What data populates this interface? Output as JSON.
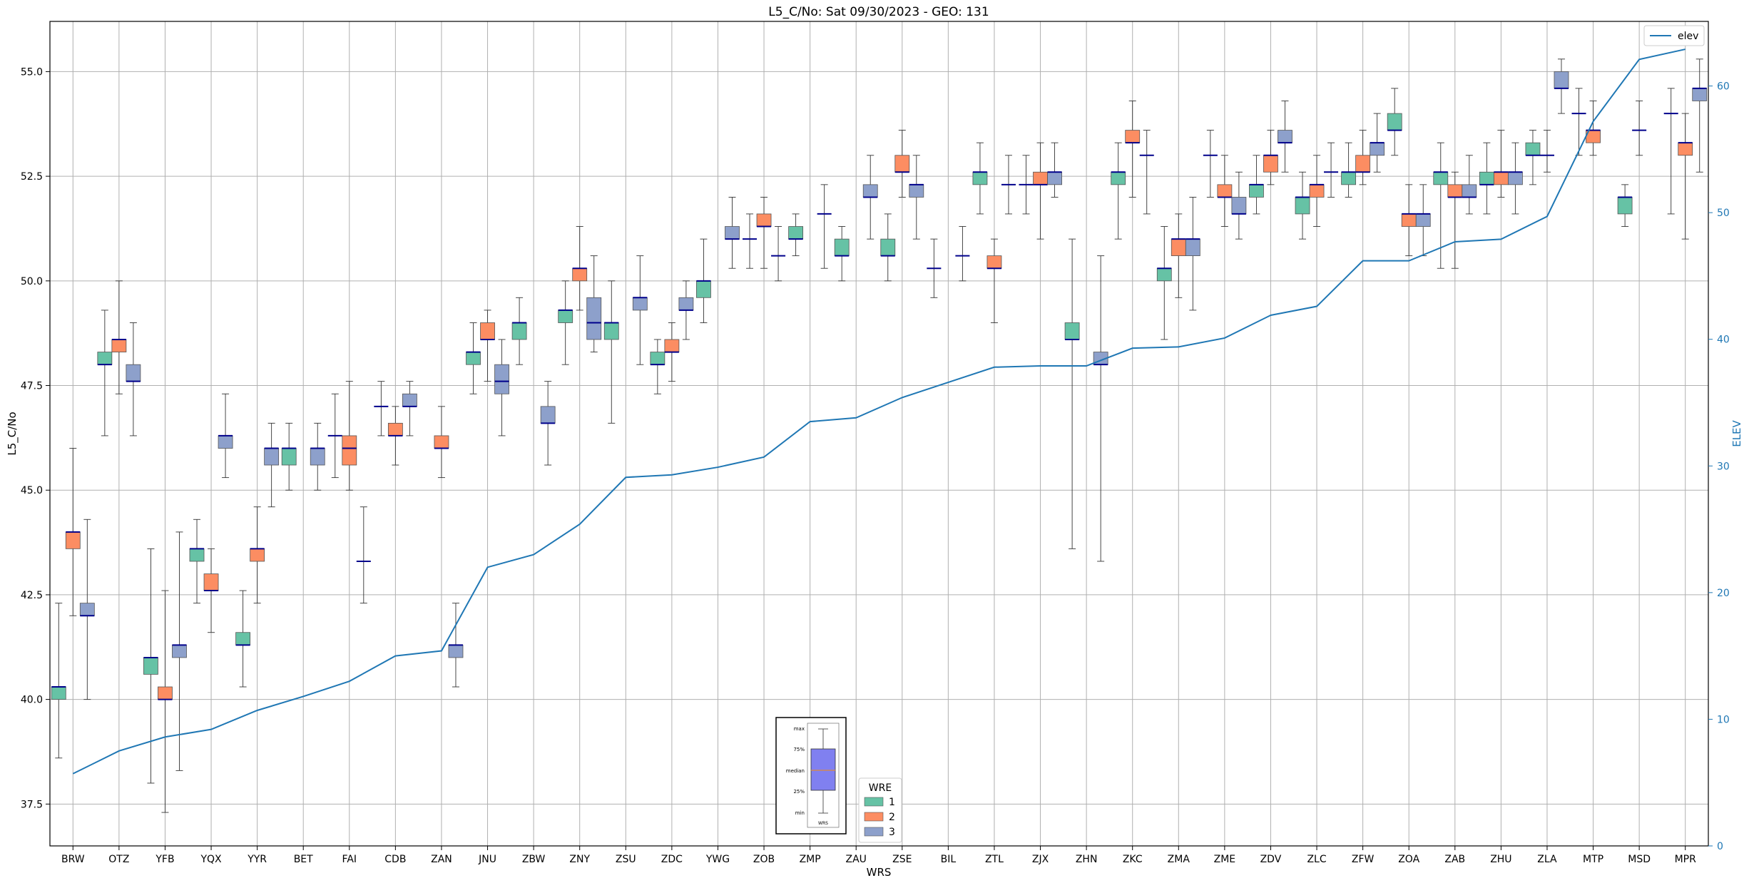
{
  "chart_data": {
    "type": "box",
    "title": "L5_C/No: Sat 09/30/2023 - GEO: 131",
    "xlabel": "WRS",
    "ylabel": "L5_C/No",
    "y2label": "ELEV",
    "ylim": [
      36.5,
      56.2
    ],
    "y2lim": [
      0,
      65.1
    ],
    "yticks": [
      "37.5",
      "40.0",
      "42.5",
      "45.0",
      "47.5",
      "50.0",
      "52.5",
      "55.0"
    ],
    "y2ticks": [
      "0",
      "10",
      "20",
      "30",
      "40",
      "50",
      "60"
    ],
    "grid": true,
    "categories": [
      "BRW",
      "OTZ",
      "YFB",
      "YQX",
      "YYR",
      "BET",
      "FAI",
      "CDB",
      "ZAN",
      "JNU",
      "ZBW",
      "ZNY",
      "ZSU",
      "ZDC",
      "YWG",
      "ZOB",
      "ZMP",
      "ZAU",
      "ZSE",
      "BIL",
      "ZTL",
      "ZJX",
      "ZHN",
      "ZKC",
      "ZMA",
      "ZME",
      "ZDV",
      "ZLC",
      "ZFW",
      "ZOA",
      "ZAB",
      "ZHU",
      "ZLA",
      "MTP",
      "MSD",
      "MPR"
    ],
    "wre_colors": {
      "1": "#66c2a5",
      "2": "#fc8d62",
      "3": "#8da0cb"
    },
    "legend_wre": {
      "title": "WRE",
      "entries": [
        "1",
        "2",
        "3"
      ],
      "position": "bottom-center"
    },
    "legend_elev": {
      "label": "elev",
      "color": "#1f77b4",
      "position": "top-right"
    },
    "box_key": {
      "labels": [
        "max",
        "75%",
        "median",
        "25%",
        "min"
      ],
      "xlabel": "WRS"
    },
    "series": [
      {
        "name": "1",
        "values": [
          {
            "cat": "BRW",
            "min": 38.6,
            "q1": 40.0,
            "median": 40.3,
            "q3": 40.3,
            "max": 42.3
          },
          {
            "cat": "OTZ",
            "min": 46.3,
            "q1": 48.0,
            "median": 48.0,
            "q3": 48.3,
            "max": 49.3
          },
          {
            "cat": "YFB",
            "min": 38.0,
            "q1": 40.6,
            "median": 41.0,
            "q3": 41.0,
            "max": 43.6
          },
          {
            "cat": "YQX",
            "min": 42.3,
            "q1": 43.3,
            "median": 43.6,
            "q3": 43.6,
            "max": 44.3
          },
          {
            "cat": "YYR",
            "min": 40.3,
            "q1": 41.3,
            "median": 41.3,
            "q3": 41.6,
            "max": 42.6
          },
          {
            "cat": "BET",
            "min": 45.0,
            "q1": 45.6,
            "median": 46.0,
            "q3": 46.0,
            "max": 46.6
          },
          {
            "cat": "FAI",
            "min": 45.3,
            "q1": 46.3,
            "median": 46.3,
            "q3": 46.3,
            "max": 47.3
          },
          {
            "cat": "CDB",
            "min": 46.3,
            "q1": 47.0,
            "median": 47.0,
            "q3": 47.0,
            "max": 47.6
          },
          {
            "cat": "JNU",
            "min": 47.3,
            "q1": 48.0,
            "median": 48.3,
            "q3": 48.3,
            "max": 49.0
          },
          {
            "cat": "ZBW",
            "min": 48.0,
            "q1": 48.6,
            "median": 49.0,
            "q3": 49.0,
            "max": 49.6
          },
          {
            "cat": "ZNY",
            "min": 48.0,
            "q1": 49.0,
            "median": 49.3,
            "q3": 49.3,
            "max": 50.0
          },
          {
            "cat": "ZSU",
            "min": 46.6,
            "q1": 48.6,
            "median": 49.0,
            "q3": 49.0,
            "max": 50.0
          },
          {
            "cat": "ZDC",
            "min": 47.3,
            "q1": 48.0,
            "median": 48.0,
            "q3": 48.3,
            "max": 48.6
          },
          {
            "cat": "YWG",
            "min": 49.0,
            "q1": 49.6,
            "median": 50.0,
            "q3": 50.0,
            "max": 51.0
          },
          {
            "cat": "ZOB",
            "min": 50.3,
            "q1": 51.0,
            "median": 51.0,
            "q3": 51.0,
            "max": 51.6
          },
          {
            "cat": "ZMP",
            "min": 50.6,
            "q1": 51.0,
            "median": 51.0,
            "q3": 51.3,
            "max": 51.6
          },
          {
            "cat": "ZAU",
            "min": 50.0,
            "q1": 50.6,
            "median": 50.6,
            "q3": 51.0,
            "max": 51.3
          },
          {
            "cat": "ZSE",
            "min": 50.0,
            "q1": 50.6,
            "median": 50.6,
            "q3": 51.0,
            "max": 51.6
          },
          {
            "cat": "BIL",
            "min": 49.6,
            "q1": 50.3,
            "median": 50.3,
            "q3": 50.3,
            "max": 51.0
          },
          {
            "cat": "ZTL",
            "min": 51.6,
            "q1": 52.3,
            "median": 52.6,
            "q3": 52.6,
            "max": 53.3
          },
          {
            "cat": "ZJX",
            "min": 51.6,
            "q1": 52.3,
            "median": 52.3,
            "q3": 52.3,
            "max": 53.0
          },
          {
            "cat": "ZHN",
            "min": 43.6,
            "q1": 48.6,
            "median": 48.6,
            "q3": 49.0,
            "max": 51.0
          },
          {
            "cat": "ZKC",
            "min": 51.0,
            "q1": 52.3,
            "median": 52.6,
            "q3": 52.6,
            "max": 53.3
          },
          {
            "cat": "ZMA",
            "min": 48.6,
            "q1": 50.0,
            "median": 50.3,
            "q3": 50.3,
            "max": 51.3
          },
          {
            "cat": "ZME",
            "min": 52.0,
            "q1": 53.0,
            "median": 53.0,
            "q3": 53.0,
            "max": 53.6
          },
          {
            "cat": "ZDV",
            "min": 51.6,
            "q1": 52.0,
            "median": 52.3,
            "q3": 52.3,
            "max": 53.0
          },
          {
            "cat": "ZLC",
            "min": 51.0,
            "q1": 51.6,
            "median": 52.0,
            "q3": 52.0,
            "max": 52.6
          },
          {
            "cat": "ZFW",
            "min": 52.0,
            "q1": 52.3,
            "median": 52.6,
            "q3": 52.6,
            "max": 53.3
          },
          {
            "cat": "ZOA",
            "min": 53.0,
            "q1": 53.6,
            "median": 53.6,
            "q3": 54.0,
            "max": 54.6
          },
          {
            "cat": "ZAB",
            "min": 50.3,
            "q1": 52.3,
            "median": 52.6,
            "q3": 52.6,
            "max": 53.3
          },
          {
            "cat": "ZHU",
            "min": 51.6,
            "q1": 52.3,
            "median": 52.3,
            "q3": 52.6,
            "max": 53.3
          },
          {
            "cat": "ZLA",
            "min": 52.3,
            "q1": 53.0,
            "median": 53.0,
            "q3": 53.3,
            "max": 53.6
          },
          {
            "cat": "MTP",
            "min": 53.0,
            "q1": 54.0,
            "median": 54.0,
            "q3": 54.0,
            "max": 54.6
          },
          {
            "cat": "MSD",
            "min": 51.3,
            "q1": 51.6,
            "median": 52.0,
            "q3": 52.0,
            "max": 52.3
          },
          {
            "cat": "MPR",
            "min": 51.6,
            "q1": 54.0,
            "median": 54.0,
            "q3": 54.0,
            "max": 54.6
          }
        ]
      },
      {
        "name": "2",
        "values": [
          {
            "cat": "BRW",
            "min": 42.0,
            "q1": 43.6,
            "median": 44.0,
            "q3": 44.0,
            "max": 46.0
          },
          {
            "cat": "OTZ",
            "min": 47.3,
            "q1": 48.3,
            "median": 48.6,
            "q3": 48.6,
            "max": 50.0
          },
          {
            "cat": "YFB",
            "min": 37.3,
            "q1": 40.0,
            "median": 40.0,
            "q3": 40.3,
            "max": 42.6
          },
          {
            "cat": "YQX",
            "min": 41.6,
            "q1": 42.6,
            "median": 42.6,
            "q3": 43.0,
            "max": 43.6
          },
          {
            "cat": "YYR",
            "min": 42.3,
            "q1": 43.3,
            "median": 43.6,
            "q3": 43.6,
            "max": 44.6
          },
          {
            "cat": "FAI",
            "min": 45.0,
            "q1": 45.6,
            "median": 46.0,
            "q3": 46.3,
            "max": 47.6
          },
          {
            "cat": "CDB",
            "min": 45.6,
            "q1": 46.3,
            "median": 46.3,
            "q3": 46.6,
            "max": 47.0
          },
          {
            "cat": "ZAN",
            "min": 45.3,
            "q1": 46.0,
            "median": 46.0,
            "q3": 46.3,
            "max": 47.0
          },
          {
            "cat": "JNU",
            "min": 47.6,
            "q1": 48.6,
            "median": 48.6,
            "q3": 49.0,
            "max": 49.3
          },
          {
            "cat": "ZNY",
            "min": 49.3,
            "q1": 50.0,
            "median": 50.3,
            "q3": 50.3,
            "max": 51.3
          },
          {
            "cat": "ZDC",
            "min": 47.6,
            "q1": 48.3,
            "median": 48.3,
            "q3": 48.6,
            "max": 49.0
          },
          {
            "cat": "ZOB",
            "min": 50.3,
            "q1": 51.3,
            "median": 51.3,
            "q3": 51.6,
            "max": 52.0
          },
          {
            "cat": "ZSE",
            "min": 52.0,
            "q1": 52.6,
            "median": 52.6,
            "q3": 53.0,
            "max": 53.6
          },
          {
            "cat": "ZTL",
            "min": 49.0,
            "q1": 50.3,
            "median": 50.3,
            "q3": 50.6,
            "max": 51.0
          },
          {
            "cat": "ZJX",
            "min": 51.0,
            "q1": 52.3,
            "median": 52.3,
            "q3": 52.6,
            "max": 53.3
          },
          {
            "cat": "ZKC",
            "min": 52.0,
            "q1": 53.3,
            "median": 53.3,
            "q3": 53.6,
            "max": 54.3
          },
          {
            "cat": "ZMA",
            "min": 49.6,
            "q1": 50.6,
            "median": 51.0,
            "q3": 51.0,
            "max": 51.6
          },
          {
            "cat": "ZME",
            "min": 51.3,
            "q1": 52.0,
            "median": 52.0,
            "q3": 52.3,
            "max": 53.0
          },
          {
            "cat": "ZDV",
            "min": 52.3,
            "q1": 52.6,
            "median": 53.0,
            "q3": 53.0,
            "max": 53.6
          },
          {
            "cat": "ZLC",
            "min": 51.3,
            "q1": 52.0,
            "median": 52.3,
            "q3": 52.3,
            "max": 53.0
          },
          {
            "cat": "ZFW",
            "min": 52.3,
            "q1": 52.6,
            "median": 52.6,
            "q3": 53.0,
            "max": 53.6
          },
          {
            "cat": "ZOA",
            "min": 50.6,
            "q1": 51.3,
            "median": 51.6,
            "q3": 51.6,
            "max": 52.3
          },
          {
            "cat": "ZAB",
            "min": 50.3,
            "q1": 52.0,
            "median": 52.0,
            "q3": 52.3,
            "max": 52.6
          },
          {
            "cat": "ZHU",
            "min": 52.0,
            "q1": 52.3,
            "median": 52.6,
            "q3": 52.6,
            "max": 53.6
          },
          {
            "cat": "ZLA",
            "min": 52.6,
            "q1": 53.0,
            "median": 53.0,
            "q3": 53.0,
            "max": 53.6
          },
          {
            "cat": "MTP",
            "min": 53.0,
            "q1": 53.3,
            "median": 53.6,
            "q3": 53.6,
            "max": 54.3
          },
          {
            "cat": "MSD",
            "min": 53.0,
            "q1": 53.6,
            "median": 53.6,
            "q3": 53.6,
            "max": 54.3
          },
          {
            "cat": "MPR",
            "min": 51.0,
            "q1": 53.0,
            "median": 53.3,
            "q3": 53.3,
            "max": 54.0
          }
        ]
      },
      {
        "name": "3",
        "values": [
          {
            "cat": "BRW",
            "min": 40.0,
            "q1": 42.0,
            "median": 42.0,
            "q3": 42.3,
            "max": 44.3
          },
          {
            "cat": "OTZ",
            "min": 46.3,
            "q1": 47.6,
            "median": 47.6,
            "q3": 48.0,
            "max": 49.0
          },
          {
            "cat": "YFB",
            "min": 38.3,
            "q1": 41.0,
            "median": 41.3,
            "q3": 41.3,
            "max": 44.0
          },
          {
            "cat": "YQX",
            "min": 45.3,
            "q1": 46.0,
            "median": 46.3,
            "q3": 46.3,
            "max": 47.3
          },
          {
            "cat": "YYR",
            "min": 44.6,
            "q1": 45.6,
            "median": 46.0,
            "q3": 46.0,
            "max": 46.6
          },
          {
            "cat": "BET",
            "min": 45.0,
            "q1": 45.6,
            "median": 46.0,
            "q3": 46.0,
            "max": 46.6
          },
          {
            "cat": "FAI",
            "min": 42.3,
            "q1": 43.3,
            "median": 43.3,
            "q3": 43.3,
            "max": 44.6
          },
          {
            "cat": "CDB",
            "min": 46.3,
            "q1": 47.0,
            "median": 47.0,
            "q3": 47.3,
            "max": 47.6
          },
          {
            "cat": "ZAN",
            "min": 40.3,
            "q1": 41.0,
            "median": 41.3,
            "q3": 41.3,
            "max": 42.3
          },
          {
            "cat": "JNU",
            "min": 46.3,
            "q1": 47.3,
            "median": 47.6,
            "q3": 48.0,
            "max": 48.6
          },
          {
            "cat": "ZBW",
            "min": 45.6,
            "q1": 46.6,
            "median": 46.6,
            "q3": 47.0,
            "max": 47.6
          },
          {
            "cat": "ZNY",
            "min": 48.3,
            "q1": 48.6,
            "median": 49.0,
            "q3": 49.6,
            "max": 50.6
          },
          {
            "cat": "ZSU",
            "min": 48.0,
            "q1": 49.3,
            "median": 49.6,
            "q3": 49.6,
            "max": 50.6
          },
          {
            "cat": "ZDC",
            "min": 48.6,
            "q1": 49.3,
            "median": 49.3,
            "q3": 49.6,
            "max": 50.0
          },
          {
            "cat": "YWG",
            "min": 50.3,
            "q1": 51.0,
            "median": 51.0,
            "q3": 51.3,
            "max": 52.0
          },
          {
            "cat": "ZOB",
            "min": 50.0,
            "q1": 50.6,
            "median": 50.6,
            "q3": 50.6,
            "max": 51.3
          },
          {
            "cat": "ZMP",
            "min": 50.3,
            "q1": 51.6,
            "median": 51.6,
            "q3": 51.6,
            "max": 52.3
          },
          {
            "cat": "ZAU",
            "min": 51.0,
            "q1": 52.0,
            "median": 52.0,
            "q3": 52.3,
            "max": 53.0
          },
          {
            "cat": "ZSE",
            "min": 51.0,
            "q1": 52.0,
            "median": 52.3,
            "q3": 52.3,
            "max": 53.0
          },
          {
            "cat": "BIL",
            "min": 50.0,
            "q1": 50.6,
            "median": 50.6,
            "q3": 50.6,
            "max": 51.3
          },
          {
            "cat": "ZTL",
            "min": 51.6,
            "q1": 52.3,
            "median": 52.3,
            "q3": 52.3,
            "max": 53.0
          },
          {
            "cat": "ZJX",
            "min": 52.0,
            "q1": 52.3,
            "median": 52.6,
            "q3": 52.6,
            "max": 53.3
          },
          {
            "cat": "ZHN",
            "min": 43.3,
            "q1": 48.0,
            "median": 48.0,
            "q3": 48.3,
            "max": 50.6
          },
          {
            "cat": "ZKC",
            "min": 51.6,
            "q1": 53.0,
            "median": 53.0,
            "q3": 53.0,
            "max": 53.6
          },
          {
            "cat": "ZMA",
            "min": 49.3,
            "q1": 50.6,
            "median": 51.0,
            "q3": 51.0,
            "max": 52.0
          },
          {
            "cat": "ZME",
            "min": 51.0,
            "q1": 51.6,
            "median": 51.6,
            "q3": 52.0,
            "max": 52.6
          },
          {
            "cat": "ZDV",
            "min": 52.6,
            "q1": 53.3,
            "median": 53.3,
            "q3": 53.6,
            "max": 54.3
          },
          {
            "cat": "ZLC",
            "min": 52.0,
            "q1": 52.6,
            "median": 52.6,
            "q3": 52.6,
            "max": 53.3
          },
          {
            "cat": "ZFW",
            "min": 52.6,
            "q1": 53.0,
            "median": 53.3,
            "q3": 53.3,
            "max": 54.0
          },
          {
            "cat": "ZOA",
            "min": 50.6,
            "q1": 51.3,
            "median": 51.6,
            "q3": 51.6,
            "max": 52.3
          },
          {
            "cat": "ZAB",
            "min": 51.6,
            "q1": 52.0,
            "median": 52.0,
            "q3": 52.3,
            "max": 53.0
          },
          {
            "cat": "ZHU",
            "min": 51.6,
            "q1": 52.3,
            "median": 52.6,
            "q3": 52.6,
            "max": 53.3
          },
          {
            "cat": "ZLA",
            "min": 54.0,
            "q1": 54.6,
            "median": 54.6,
            "q3": 55.0,
            "max": 55.3
          },
          {
            "cat": "MPR",
            "min": 52.6,
            "q1": 54.3,
            "median": 54.6,
            "q3": 54.6,
            "max": 55.3
          }
        ]
      }
    ],
    "elev": [
      5.7,
      7.5,
      8.6,
      9.2,
      10.7,
      11.8,
      13.0,
      15.0,
      15.4,
      22.0,
      23.0,
      25.4,
      29.1,
      29.3,
      29.9,
      30.7,
      33.5,
      33.8,
      35.4,
      36.6,
      37.8,
      37.9,
      37.9,
      39.3,
      39.4,
      40.1,
      41.9,
      42.6,
      46.2,
      46.2,
      47.7,
      47.9,
      49.7,
      57.2,
      62.1,
      62.9
    ]
  }
}
